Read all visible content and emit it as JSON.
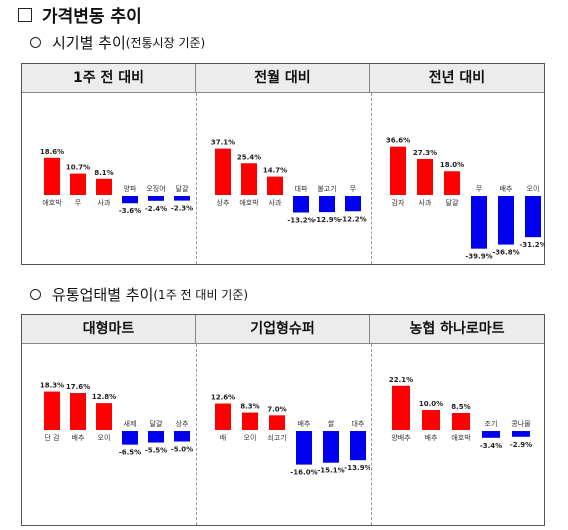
{
  "title": "가격변동 추이",
  "section1": {
    "label": "시기별 추이",
    "note": "(전통시장 기준)"
  },
  "section2": {
    "label": "유통업태별 추이",
    "note": "(1주 전 대비 기준)"
  },
  "colors": {
    "positive": "#ff0000",
    "negative": "#0000ee"
  },
  "panel1": {
    "headers": [
      "1주 전 대비",
      "전월 대비",
      "전년 대비"
    ]
  },
  "panel2": {
    "headers": [
      "대형마트",
      "기업형슈퍼",
      "농협 하나로마트"
    ]
  },
  "chart_data": [
    {
      "type": "bar",
      "panel": "1주 전 대비",
      "categories": [
        "애호박",
        "무",
        "사과",
        "양파",
        "오징어",
        "달걀"
      ],
      "values": [
        18.6,
        10.7,
        8.1,
        -3.6,
        -2.4,
        -2.3
      ]
    },
    {
      "type": "bar",
      "panel": "전월 대비",
      "categories": [
        "상추",
        "애호박",
        "사과",
        "대파",
        "불고기",
        "무"
      ],
      "values": [
        37.1,
        25.4,
        14.7,
        -13.2,
        -12.9,
        -12.2
      ]
    },
    {
      "type": "bar",
      "panel": "전년 대비",
      "categories": [
        "감자",
        "사과",
        "달걀",
        "무",
        "배추",
        "오이"
      ],
      "values": [
        36.6,
        27.3,
        18.0,
        -39.9,
        -36.8,
        -31.2
      ]
    },
    {
      "type": "bar",
      "panel": "대형마트",
      "categories": [
        "단 감",
        "배추",
        "오이",
        "새제",
        "달걀",
        "상추"
      ],
      "values": [
        18.3,
        17.6,
        12.8,
        -6.5,
        -5.5,
        -5.0
      ]
    },
    {
      "type": "bar",
      "panel": "기업형슈퍼",
      "categories": [
        "배",
        "오이",
        "쇠고기",
        "배추",
        "쌀",
        "대추"
      ],
      "values": [
        12.6,
        8.3,
        7.0,
        -16.0,
        -15.1,
        -13.9
      ]
    },
    {
      "type": "bar",
      "panel": "농협 하나로마트",
      "categories": [
        "양배추",
        "배추",
        "애호박",
        "조기",
        "콩나물"
      ],
      "values": [
        22.1,
        10.0,
        8.5,
        -3.4,
        -2.9
      ]
    }
  ]
}
